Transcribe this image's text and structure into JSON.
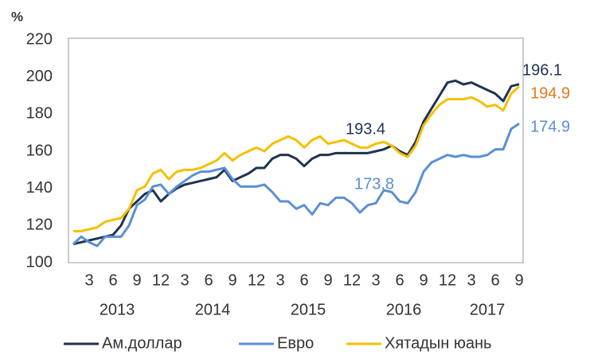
{
  "chart_data": {
    "type": "line",
    "y_unit": "%",
    "categories": [
      null,
      null,
      "3",
      null,
      null,
      "6",
      null,
      null,
      "9",
      null,
      null,
      "12",
      null,
      null,
      "3",
      null,
      null,
      "6",
      null,
      null,
      "9",
      null,
      null,
      "12",
      null,
      null,
      "3",
      null,
      null,
      "6",
      null,
      null,
      "9",
      null,
      null,
      "12",
      null,
      null,
      "3",
      null,
      null,
      "6",
      null,
      null,
      "9",
      null,
      null,
      "12",
      null,
      null,
      "3",
      null,
      null,
      "6",
      null,
      null,
      "9"
    ],
    "year_labels": [
      "2013",
      "2014",
      "2015",
      "2016",
      "2017"
    ],
    "series": [
      {
        "name": "Ам.доллар",
        "color": "#1f3350",
        "values": [
          110,
          111,
          112,
          113,
          114,
          115,
          120,
          129,
          133,
          137,
          139,
          133,
          137,
          140,
          142,
          143,
          144,
          145,
          146,
          150,
          144,
          146,
          148,
          151,
          151,
          156,
          158,
          158,
          156,
          152,
          156,
          158,
          158,
          159,
          159,
          159,
          159,
          159,
          160,
          161,
          163,
          160,
          158,
          165,
          176,
          183,
          190,
          197,
          198,
          196,
          197,
          195,
          193,
          191,
          187,
          195,
          196.1
        ]
      },
      {
        "name": "Евро",
        "color": "#5b8fd6",
        "values": [
          110,
          114,
          111,
          109,
          114,
          114,
          114,
          120,
          131,
          134,
          141,
          142,
          137,
          141,
          144,
          147,
          149,
          149,
          150,
          151,
          145,
          141,
          141,
          141,
          142,
          138,
          133,
          133,
          129,
          131,
          126,
          132,
          131,
          135,
          135,
          132,
          127,
          131,
          132,
          139,
          138,
          133,
          132,
          138,
          149,
          154,
          156,
          158,
          157,
          158,
          157,
          157,
          158,
          161,
          161,
          172,
          174.9
        ]
      },
      {
        "name": "Хятадын юань",
        "color": "#f5c000",
        "values": [
          117,
          117,
          118,
          119,
          122,
          123,
          124,
          129,
          139,
          141,
          148,
          150,
          145,
          149,
          150,
          150,
          151,
          153,
          155,
          159,
          155,
          158,
          160,
          162,
          160,
          164,
          166,
          168,
          166,
          162,
          166,
          168,
          164,
          165,
          166,
          164,
          162,
          162,
          164,
          165,
          163,
          159,
          157,
          163,
          174,
          180,
          185,
          188,
          188,
          188,
          189,
          187,
          184,
          185,
          182,
          191,
          194.9
        ]
      }
    ],
    "annotations": [
      {
        "text": "193.4",
        "color": "#1f3350"
      },
      {
        "text": "173.8",
        "color": "#5b8fd6"
      },
      {
        "text": "196.1",
        "color": "#1f3350"
      },
      {
        "text": "194.9",
        "color": "#e07b20"
      },
      {
        "text": "174.9",
        "color": "#5b8fd6"
      }
    ],
    "ylim": [
      100,
      220
    ],
    "yticks": [
      100,
      120,
      140,
      160,
      180,
      200,
      220
    ],
    "grid": false
  }
}
